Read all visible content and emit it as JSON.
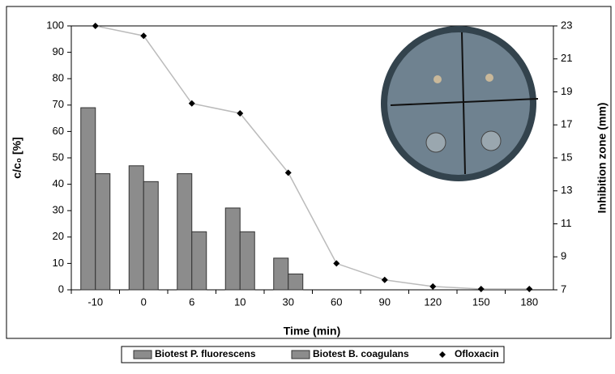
{
  "chart_data": {
    "type": "bar_line",
    "x_label": "Time (min)",
    "y_label": "c/c₀ [%]",
    "y2_label": "Inhibition zone (mm)",
    "categories": [
      "-10",
      "0",
      "6",
      "10",
      "30",
      "60",
      "90",
      "120",
      "150",
      "180"
    ],
    "series": [
      {
        "name": "Biotest P. fluorescens",
        "kind": "bar",
        "color": "#8c8c8c",
        "values": [
          69,
          47,
          44,
          31,
          12,
          null,
          null,
          null,
          null,
          null
        ]
      },
      {
        "name": "Biotest B. coagulans",
        "kind": "bar",
        "color": "#8c8c8c",
        "values": [
          44,
          41,
          22,
          22,
          6,
          null,
          null,
          null,
          null,
          null
        ]
      },
      {
        "name": "Ofloxacin",
        "kind": "line",
        "axis": "y2",
        "color": "#000000",
        "values": [
          23,
          22.4,
          18.3,
          17.7,
          14.1,
          8.6,
          7.6,
          7.2,
          7.05,
          7.05
        ]
      }
    ],
    "ylim": [
      0,
      100
    ],
    "yticks": [
      0,
      10,
      20,
      30,
      40,
      50,
      60,
      70,
      80,
      90,
      100
    ],
    "y2lim": [
      7,
      23
    ],
    "y2ticks": [
      7,
      9,
      11,
      13,
      15,
      17,
      19,
      21,
      23
    ]
  }
}
